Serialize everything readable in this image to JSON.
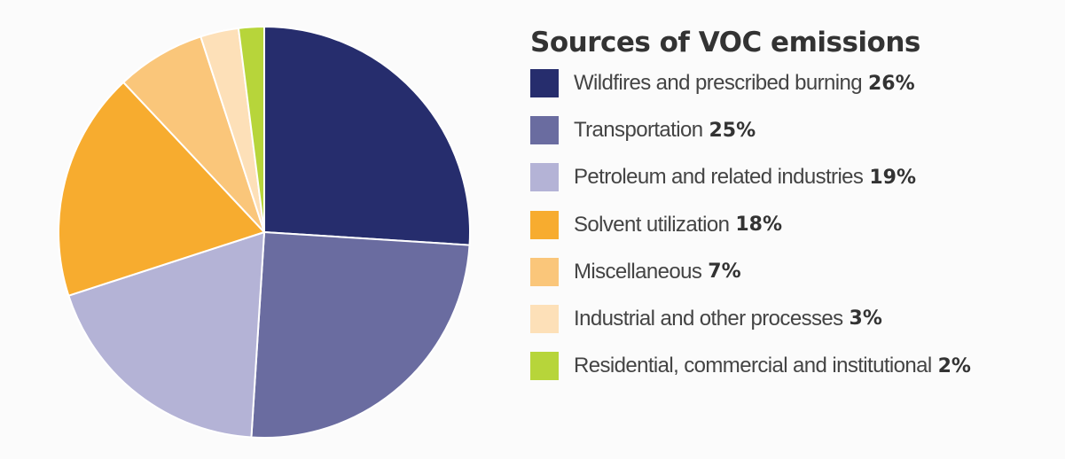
{
  "chart_data": {
    "type": "pie",
    "title": "Sources of VOC emissions",
    "unit": "%",
    "slices": [
      {
        "label": "Wildfires and prescribed burning",
        "value": 26,
        "value_label": "26%",
        "color": "#262d6d"
      },
      {
        "label": "Transportation",
        "value": 25,
        "value_label": "25%",
        "color": "#6a6ca0"
      },
      {
        "label": "Petroleum and related industries",
        "value": 19,
        "value_label": "19%",
        "color": "#b4b3d6"
      },
      {
        "label": "Solvent utilization",
        "value": 18,
        "value_label": "18%",
        "color": "#f7ac2f"
      },
      {
        "label": "Miscellaneous",
        "value": 7,
        "value_label": "7%",
        "color": "#fac67a"
      },
      {
        "label": "Industrial and other processes",
        "value": 3,
        "value_label": "3%",
        "color": "#fde0b8"
      },
      {
        "label": "Residential, commercial and institutional",
        "value": 2,
        "value_label": "2%",
        "color": "#b7d53a"
      }
    ],
    "start_angle": "12 o'clock",
    "direction": "clockwise",
    "legend_position": "right"
  }
}
